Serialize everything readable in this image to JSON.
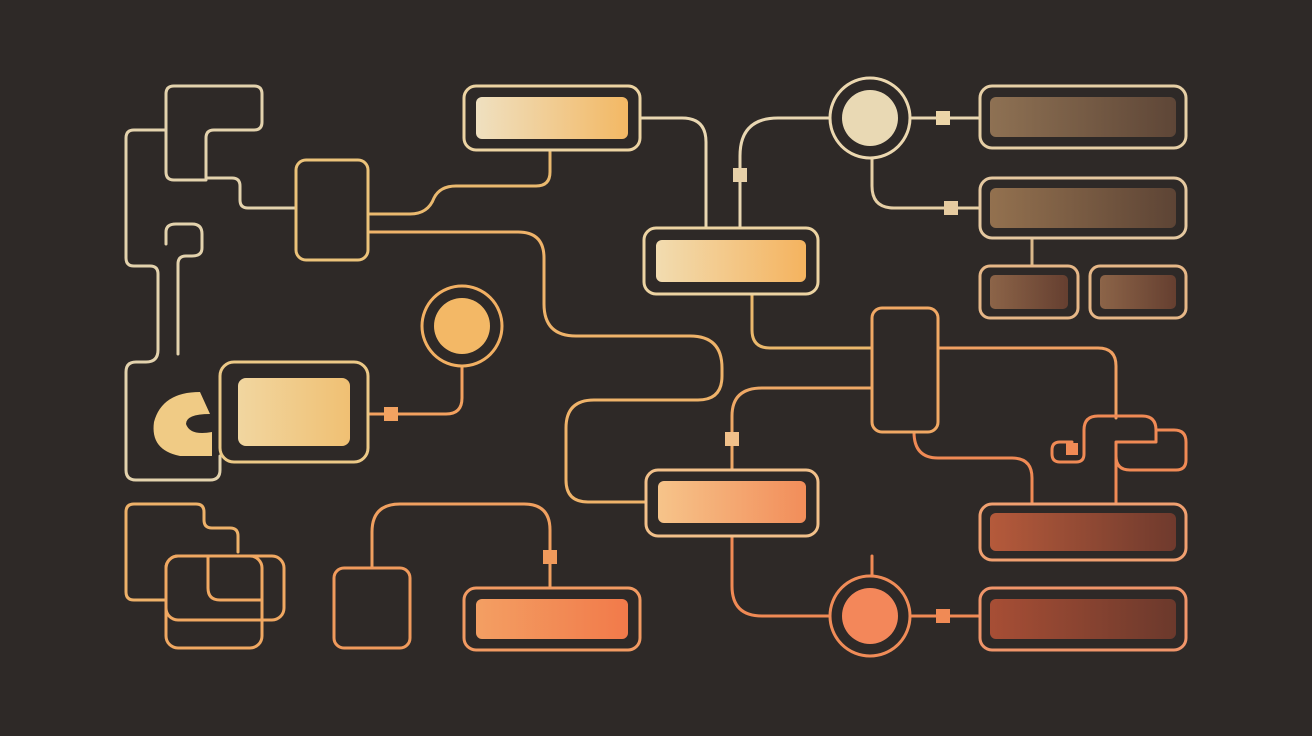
{
  "palette": {
    "background": "#2e2927",
    "cream": "#e8d6b0",
    "sand": "#eccd8e",
    "amber": "#f3b864",
    "orange": "#f39a5e",
    "coral": "#f38653",
    "brown_light": "#8d6e51",
    "brown_dark": "#5a4336",
    "rust": "#b0553a",
    "rust_dark": "#6e3b2e"
  },
  "diagram": {
    "kind": "abstract-flow-network",
    "text_labels": [],
    "node_counts": {
      "filled_bars": 11,
      "outlined_boxes": 5,
      "circle_nodes": 3,
      "connector_squares": 9
    }
  }
}
